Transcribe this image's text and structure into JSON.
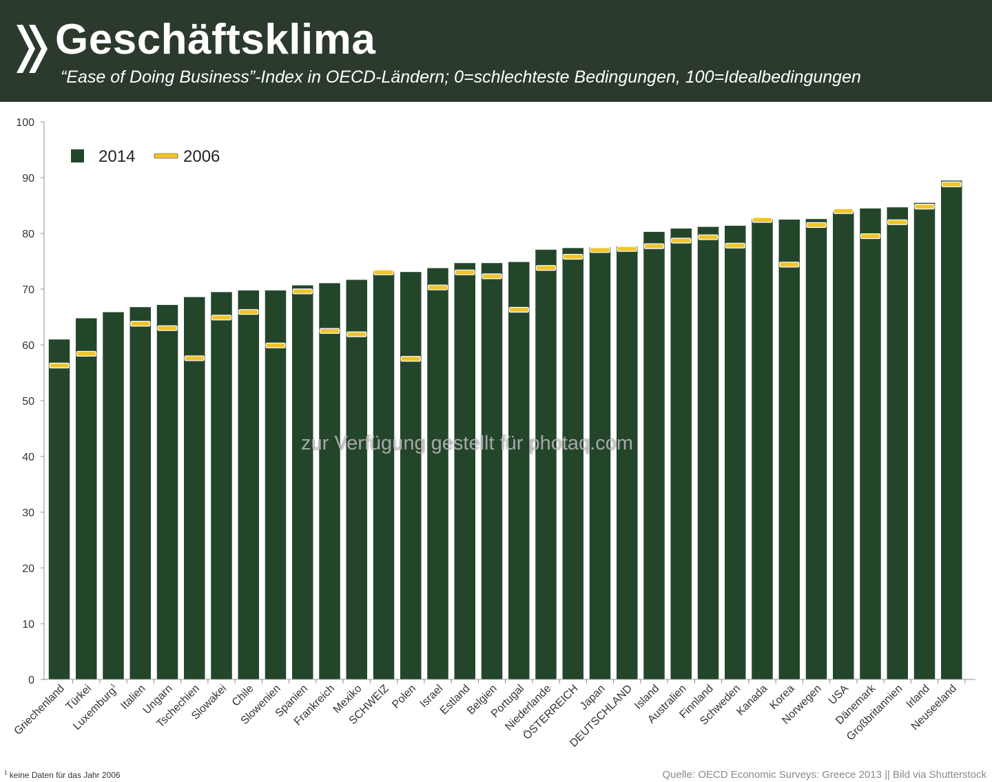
{
  "header": {
    "title": "Geschäftsklima",
    "subtitle": "“Ease of Doing Business”-Index in OECD-Ländern; 0=schlechteste Bedingungen, 100=Idealbedingungen"
  },
  "colors": {
    "header_bg": "#2b3a2c",
    "bar_2014": "#23462b",
    "marker_2006": "#f0c42a"
  },
  "chart_data": {
    "type": "bar",
    "title": "",
    "xlabel": "",
    "ylabel": "",
    "ylim": [
      0,
      100
    ],
    "yticks": [
      0,
      10,
      20,
      30,
      40,
      50,
      60,
      70,
      80,
      90,
      100
    ],
    "grid": false,
    "legend_position": "top-left",
    "categories": [
      "Griechenland",
      "Türkei",
      "Luxemburg",
      "Italien",
      "Ungarn",
      "Tschechien",
      "Slowakei",
      "Chile",
      "Slowenien",
      "Spanien",
      "Frankreich",
      "Mexiko",
      "SCHWEIZ",
      "Polen",
      "Israel",
      "Estland",
      "Belgien",
      "Portugal",
      "Niederlande",
      "ÖSTERREICH",
      "Japan",
      "DEUTSCHLAND",
      "Island",
      "Australien",
      "Finnland",
      "Schweden",
      "Kanada",
      "Korea",
      "Norwegen",
      "USA",
      "Dänemark",
      "Großbritannien",
      "Irland",
      "Neuseeland"
    ],
    "category_superscripts": {
      "Luxemburg": "1"
    },
    "series": [
      {
        "name": "2014",
        "type": "bar",
        "values": [
          61.0,
          64.8,
          65.9,
          66.8,
          67.2,
          68.6,
          69.5,
          69.8,
          69.8,
          70.7,
          71.1,
          71.7,
          73.2,
          73.1,
          73.8,
          74.7,
          74.7,
          74.9,
          77.1,
          77.4,
          77.5,
          77.7,
          80.3,
          80.9,
          81.2,
          81.4,
          82.6,
          82.5,
          82.6,
          84.0,
          84.5,
          84.7,
          85.5,
          89.5
        ]
      },
      {
        "name": "2006",
        "type": "marker",
        "values": [
          56.3,
          58.4,
          null,
          63.8,
          63.0,
          57.6,
          64.9,
          65.9,
          59.9,
          69.6,
          62.5,
          61.9,
          73.0,
          57.5,
          70.3,
          73.0,
          72.3,
          66.3,
          73.8,
          75.8,
          77.0,
          77.2,
          77.7,
          78.7,
          79.3,
          77.8,
          82.4,
          74.4,
          81.5,
          84.0,
          79.5,
          82.0,
          84.8,
          88.8
        ]
      }
    ]
  },
  "footnote": {
    "marker": "1",
    "text": "keine Daten für das Jahr 2006"
  },
  "source": "Quelle: OECD Economic Surveys: Greece 2013 || Bild via Shutterstock",
  "watermark": "zur Verfügung gestellt für photaq.com"
}
